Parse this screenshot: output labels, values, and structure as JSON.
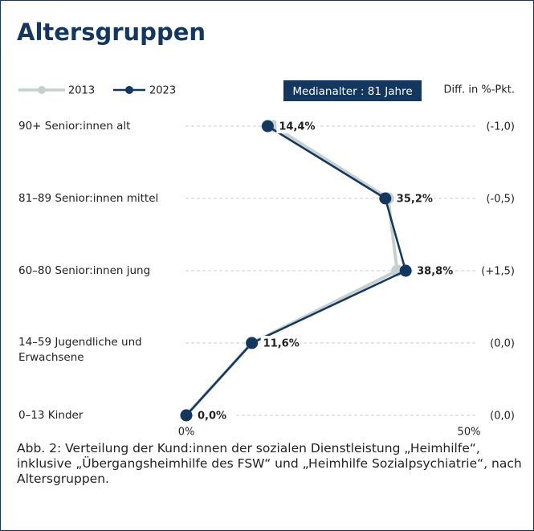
{
  "chart_data": {
    "type": "line",
    "orientation": "horizontal",
    "title": "Altersgruppen",
    "categories": [
      "90+ Senior:innen alt",
      "81–89  Senior:innen mittel",
      "60–80 Senior:innen jung",
      "14–59 Jugendliche und Erwachsene",
      "0–13 Kinder"
    ],
    "series": [
      {
        "name": "2013",
        "color": "#c6d1cd",
        "values": [
          15.4,
          35.7,
          37.3,
          11.6,
          0.0
        ]
      },
      {
        "name": "2023",
        "color": "#13375e",
        "values": [
          14.4,
          35.2,
          38.8,
          11.6,
          0.0
        ],
        "value_labels": [
          "14,4%",
          "35,2%",
          "38,8%",
          "11,6%",
          "0,0%"
        ]
      }
    ],
    "xlim": [
      0,
      50
    ],
    "xticks": [
      {
        "value": 0,
        "label": "0%"
      },
      {
        "value": 50,
        "label": "50%"
      }
    ],
    "annotation": "Medianalter : 81 Jahre",
    "diff_title": "Diff. in %-Pkt.",
    "diff_labels": [
      "(-1,0)",
      "(-0,5)",
      "(+1,5)",
      "(0,0)",
      "(0,0)"
    ],
    "caption": "Abb. 2: Verteilung der Kund:innen der sozialen Dienstleistung „Heimhilfe“, inklusive „Übergangsheimhilfe des FSW“ und „Heimhilfe Sozialpsychiatrie“, nach Altersgruppen."
  }
}
